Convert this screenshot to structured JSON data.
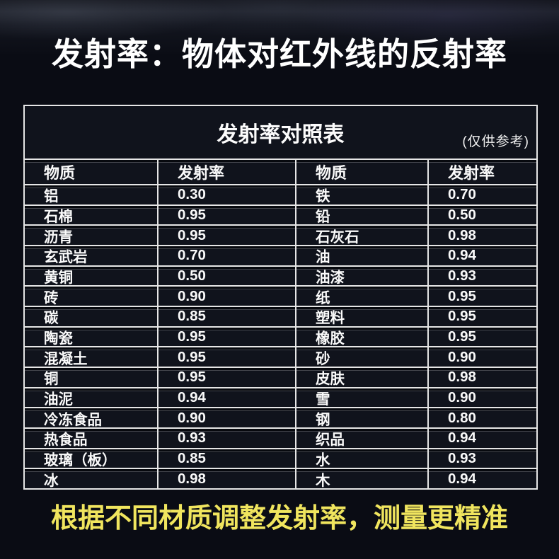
{
  "page": {
    "title": "发射率：物体对红外线的反射率",
    "footer_note": "根据不同材质调整发射率，测量更精准"
  },
  "chart_data": {
    "type": "table",
    "title": "发射率对照表",
    "note": "(仅供参考)",
    "columns": [
      "物质",
      "发射率",
      "物质",
      "发射率"
    ],
    "rows": [
      [
        "铝",
        "0.30",
        "铁",
        "0.70"
      ],
      [
        "石棉",
        "0.95",
        "铅",
        "0.50"
      ],
      [
        "沥青",
        "0.95",
        "石灰石",
        "0.98"
      ],
      [
        "玄武岩",
        "0.70",
        "油",
        "0.94"
      ],
      [
        "黄铜",
        "0.50",
        "油漆",
        "0.93"
      ],
      [
        "砖",
        "0.90",
        "纸",
        "0.95"
      ],
      [
        "碳",
        "0.85",
        "塑料",
        "0.95"
      ],
      [
        "陶瓷",
        "0.95",
        "橡胶",
        "0.95"
      ],
      [
        "混凝土",
        "0.95",
        "砂",
        "0.90"
      ],
      [
        "铜",
        "0.95",
        "皮肤",
        "0.98"
      ],
      [
        "油泥",
        "0.94",
        "雪",
        "0.90"
      ],
      [
        "冷冻食品",
        "0.90",
        "钢",
        "0.80"
      ],
      [
        "热食品",
        "0.93",
        "织品",
        "0.94"
      ],
      [
        "玻璃（板）",
        "0.85",
        "水",
        "0.93"
      ],
      [
        "冰",
        "0.98",
        "木",
        "0.94"
      ]
    ]
  },
  "colors": {
    "bg": "#0a0c14",
    "panel": "#10131c",
    "line": "#e6e6e6",
    "text": "#f8f8f8",
    "accent": "#f0e55e"
  }
}
